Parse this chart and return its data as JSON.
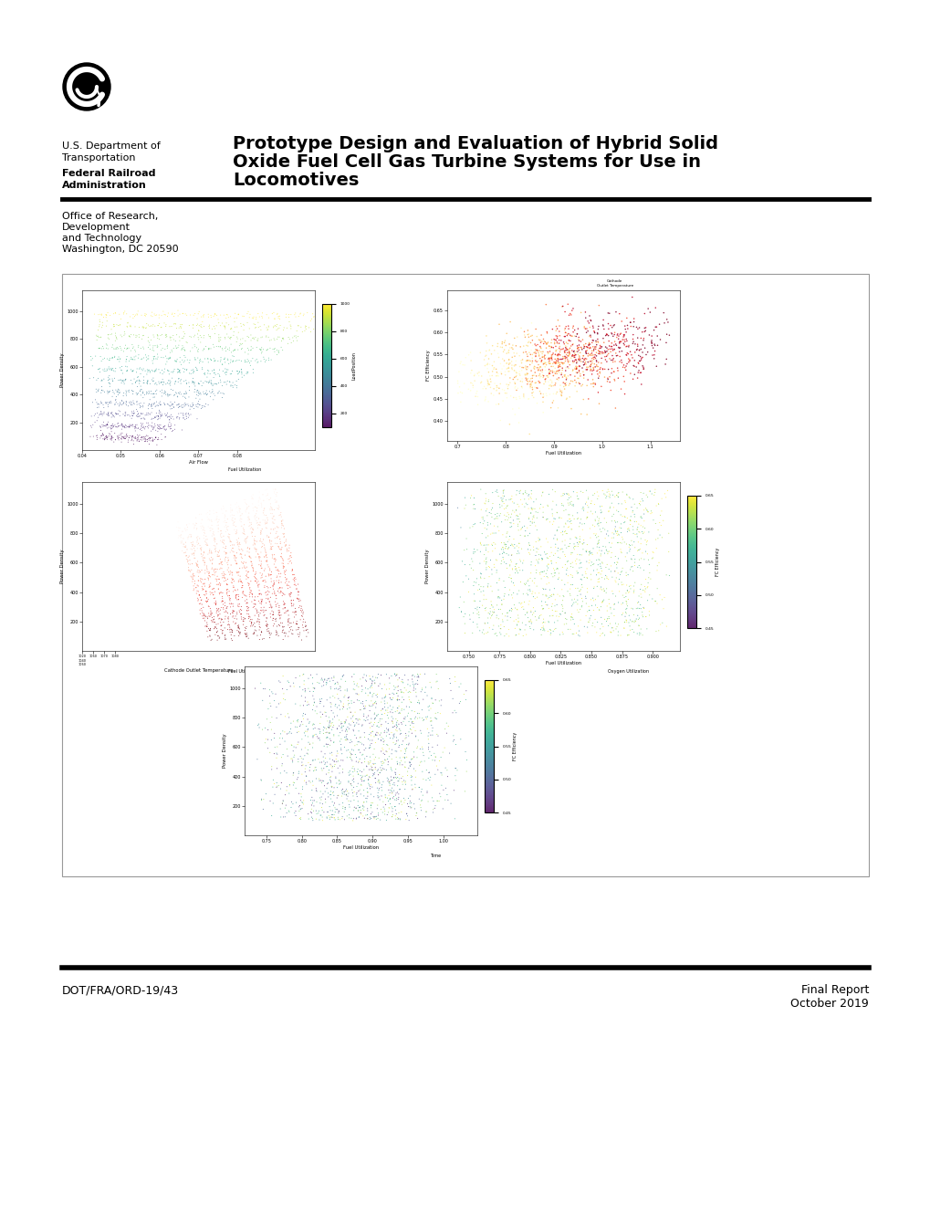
{
  "title_line1": "Prototype Design and Evaluation of Hybrid Solid",
  "title_line2": "Oxide Fuel Cell Gas Turbine Systems for Use in",
  "title_line3": "Locomotives",
  "dept_line1": "U.S. Department of",
  "dept_line2": "Transportation",
  "agency_line1": "Federal Railroad",
  "agency_line2": "Administration",
  "office_line1": "Office of Research,",
  "office_line2": "Development",
  "office_line3": "and Technology",
  "office_line4": "Washington, DC 20590",
  "report_number": "DOT/FRA/ORD-19/43",
  "report_type": "Final Report",
  "report_date": "October 2019",
  "bg_color": "#ffffff",
  "text_color": "#000000"
}
